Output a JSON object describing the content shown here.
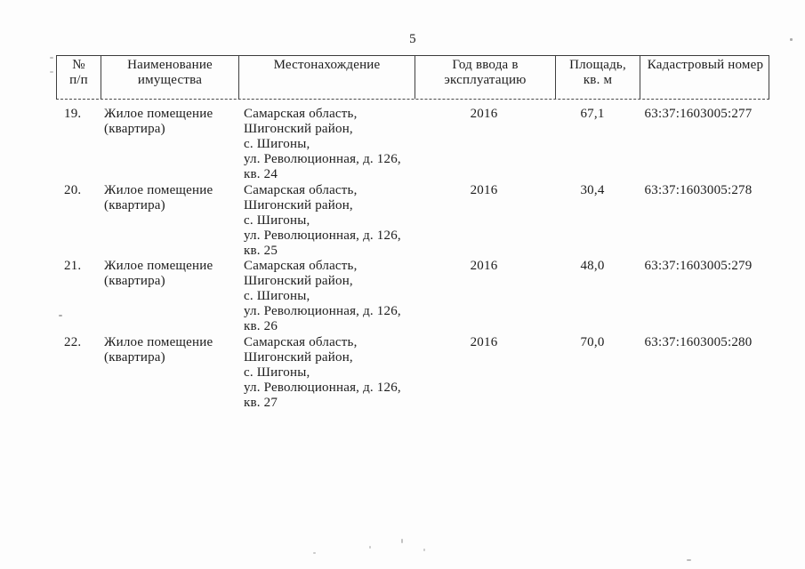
{
  "page": {
    "number": "5",
    "background_color": "#fdfdfd",
    "text_color": "#1c1c1c",
    "border_color": "#3f3f3f"
  },
  "table": {
    "columns": [
      {
        "key": "num",
        "label": "№\nп/п"
      },
      {
        "key": "name",
        "label": "Наименование\nимущества"
      },
      {
        "key": "location",
        "label": "Местонахождение"
      },
      {
        "key": "year",
        "label": "Год ввода в\nэксплуатацию"
      },
      {
        "key": "area",
        "label": "Площадь,\nкв. м"
      },
      {
        "key": "cadastral",
        "label": "Кадастровый номер"
      }
    ],
    "rows": [
      {
        "num": "19.",
        "name": "Жилое помещение\n(квартира)",
        "location": "Самарская область,\nШигонский район,\nс. Шигоны,\nул. Революционная, д. 126,\nкв. 24",
        "year": "2016",
        "area": "67,1",
        "cadastral": "63:37:1603005:277"
      },
      {
        "num": "20.",
        "name": "Жилое помещение\n(квартира)",
        "location": "Самарская область,\nШигонский район,\nс. Шигоны,\nул. Революционная, д. 126,\nкв. 25",
        "year": "2016",
        "area": "30,4",
        "cadastral": "63:37:1603005:278"
      },
      {
        "num": "21.",
        "name": "Жилое помещение\n(квартира)",
        "location": "Самарская область,\nШигонский район,\nс. Шигоны,\nул. Революционная, д. 126,\nкв. 26",
        "year": "2016",
        "area": "48,0",
        "cadastral": "63:37:1603005:279"
      },
      {
        "num": "22.",
        "name": "Жилое помещение\n(квартира)",
        "location": "Самарская область,\nШигонский район,\nс. Шигоны,\nул. Революционная, д. 126,\nкв. 27",
        "year": "2016",
        "area": "70,0",
        "cadastral": "63:37:1603005:280"
      }
    ]
  }
}
